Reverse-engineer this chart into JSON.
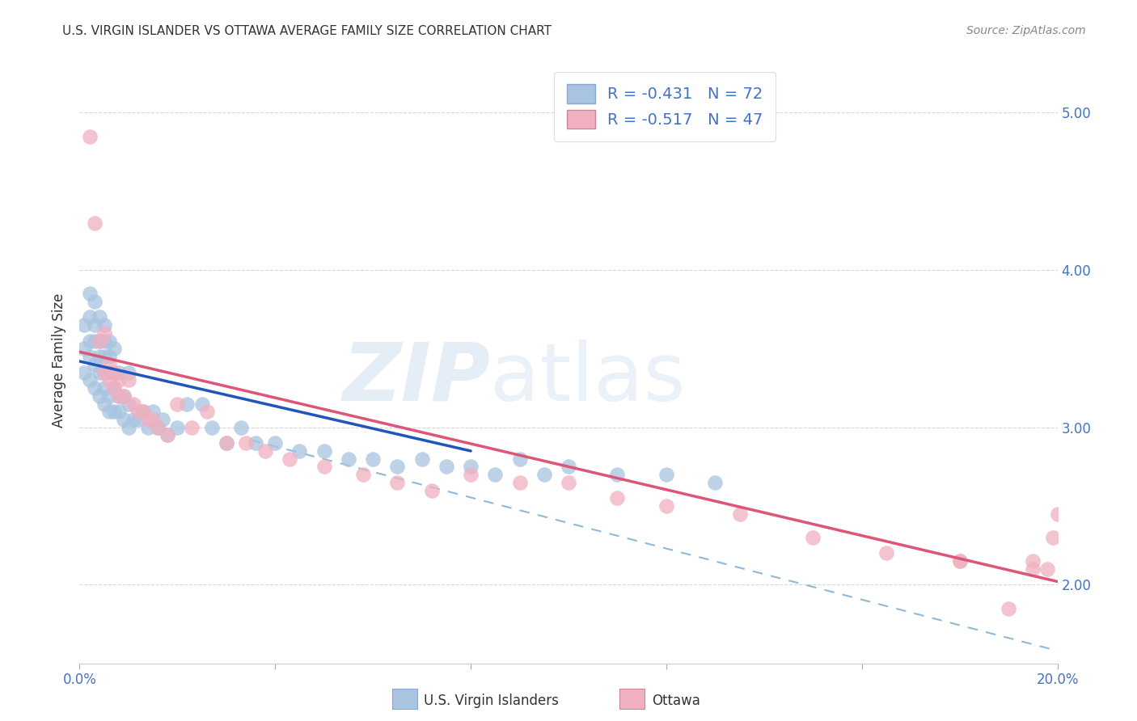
{
  "title": "U.S. VIRGIN ISLANDER VS OTTAWA AVERAGE FAMILY SIZE CORRELATION CHART",
  "source": "Source: ZipAtlas.com",
  "ylabel": "Average Family Size",
  "xlim": [
    0.0,
    0.2
  ],
  "ylim": [
    1.5,
    5.35
  ],
  "yticks_left": [],
  "yticks_right": [
    2.0,
    3.0,
    4.0,
    5.0
  ],
  "watermark_zip": "ZIP",
  "watermark_atlas": "atlas",
  "legend_r1": "-0.431",
  "legend_n1": "72",
  "legend_r2": "-0.517",
  "legend_n2": "47",
  "blue_scatter_color": "#a8c4e0",
  "pink_scatter_color": "#f0b0c0",
  "blue_line_color": "#2255bb",
  "pink_line_color": "#dd5577",
  "dashed_line_color": "#90b8d8",
  "title_color": "#333333",
  "axis_label_color": "#333333",
  "tick_color": "#4472c4",
  "background_color": "#ffffff",
  "grid_color": "#cccccc",
  "blue_points_x": [
    0.001,
    0.001,
    0.001,
    0.002,
    0.002,
    0.002,
    0.002,
    0.002,
    0.003,
    0.003,
    0.003,
    0.003,
    0.003,
    0.004,
    0.004,
    0.004,
    0.004,
    0.004,
    0.005,
    0.005,
    0.005,
    0.005,
    0.005,
    0.005,
    0.006,
    0.006,
    0.006,
    0.006,
    0.006,
    0.007,
    0.007,
    0.007,
    0.007,
    0.008,
    0.008,
    0.008,
    0.009,
    0.009,
    0.01,
    0.01,
    0.01,
    0.011,
    0.012,
    0.013,
    0.014,
    0.015,
    0.016,
    0.017,
    0.018,
    0.02,
    0.022,
    0.025,
    0.027,
    0.03,
    0.033,
    0.036,
    0.04,
    0.045,
    0.05,
    0.055,
    0.06,
    0.065,
    0.07,
    0.075,
    0.08,
    0.085,
    0.09,
    0.095,
    0.1,
    0.11,
    0.12,
    0.13
  ],
  "blue_points_y": [
    3.35,
    3.5,
    3.65,
    3.3,
    3.45,
    3.55,
    3.7,
    3.85,
    3.25,
    3.4,
    3.55,
    3.65,
    3.8,
    3.2,
    3.35,
    3.45,
    3.55,
    3.7,
    3.15,
    3.25,
    3.35,
    3.45,
    3.55,
    3.65,
    3.1,
    3.2,
    3.35,
    3.45,
    3.55,
    3.1,
    3.25,
    3.35,
    3.5,
    3.1,
    3.2,
    3.35,
    3.05,
    3.2,
    3.0,
    3.15,
    3.35,
    3.05,
    3.05,
    3.1,
    3.0,
    3.1,
    3.0,
    3.05,
    2.95,
    3.0,
    3.15,
    3.15,
    3.0,
    2.9,
    3.0,
    2.9,
    2.9,
    2.85,
    2.85,
    2.8,
    2.8,
    2.75,
    2.8,
    2.75,
    2.75,
    2.7,
    2.8,
    2.7,
    2.75,
    2.7,
    2.7,
    2.65
  ],
  "pink_points_x": [
    0.002,
    0.003,
    0.004,
    0.005,
    0.005,
    0.006,
    0.006,
    0.007,
    0.007,
    0.008,
    0.008,
    0.009,
    0.01,
    0.011,
    0.012,
    0.013,
    0.014,
    0.015,
    0.016,
    0.018,
    0.02,
    0.023,
    0.026,
    0.03,
    0.034,
    0.038,
    0.043,
    0.05,
    0.058,
    0.065,
    0.072,
    0.08,
    0.09,
    0.1,
    0.11,
    0.12,
    0.135,
    0.15,
    0.165,
    0.18,
    0.19,
    0.195,
    0.198,
    0.199,
    0.2,
    0.195,
    0.18
  ],
  "pink_points_y": [
    4.85,
    4.3,
    3.55,
    3.6,
    3.35,
    3.4,
    3.3,
    3.35,
    3.25,
    3.3,
    3.2,
    3.2,
    3.3,
    3.15,
    3.1,
    3.1,
    3.05,
    3.05,
    3.0,
    2.95,
    3.15,
    3.0,
    3.1,
    2.9,
    2.9,
    2.85,
    2.8,
    2.75,
    2.7,
    2.65,
    2.6,
    2.7,
    2.65,
    2.65,
    2.55,
    2.5,
    2.45,
    2.3,
    2.2,
    2.15,
    1.85,
    2.15,
    2.1,
    2.3,
    2.45,
    2.1,
    2.15
  ],
  "blue_trend_x": [
    0.0,
    0.08
  ],
  "blue_trend_y": [
    3.42,
    2.85
  ],
  "pink_trend_x": [
    0.0,
    0.2
  ],
  "pink_trend_y": [
    3.48,
    2.02
  ],
  "dashed_trend_x": [
    0.035,
    0.2
  ],
  "dashed_trend_y": [
    2.92,
    1.58
  ]
}
